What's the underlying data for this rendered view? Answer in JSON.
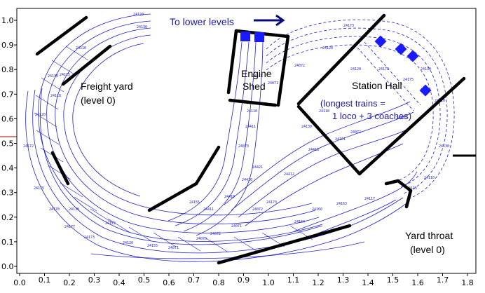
{
  "axes": {
    "x_ticks": [
      "0.0",
      "0.1",
      "0.2",
      "0.3",
      "0.4",
      "0.5",
      "0.6",
      "0.7",
      "0.8",
      "0.9",
      "1.0",
      "1.1",
      "1.2",
      "1.3",
      "1.4",
      "1.5",
      "1.6",
      "1.7",
      "1.8"
    ],
    "y_ticks": [
      "1.0",
      "0.9",
      "0.8",
      "0.7",
      "0.6",
      "0.5",
      "0.4",
      "0.3",
      "0.2",
      "0.1",
      "0.0"
    ],
    "x_range": [
      0.0,
      1.8
    ],
    "y_range": [
      0.0,
      1.0
    ]
  },
  "labels": {
    "to_lower_levels": "To lower levels",
    "freight_yard_1": "Freight yard",
    "freight_yard_2": "(level 0)",
    "engine_1": "Engine",
    "engine_2": "Shed",
    "station_hall": "Station Hall",
    "longest_1": "(longest trains =",
    "longest_2": "1 loco + 3 coaches)",
    "yard_throat_1": "Yard throat",
    "yard_throat_2": "(level 0)"
  },
  "track_numbers": [
    "24120",
    "24130",
    "24110",
    "24115",
    "24130",
    "24118",
    "24120",
    "24172",
    "24175",
    "24170",
    "24130",
    "24177",
    "24173",
    "24172",
    "24120",
    "24155",
    "24071",
    "24070",
    "24072",
    "24071",
    "24072",
    "24173",
    "24164",
    "24160",
    "24163",
    "24117",
    "24155",
    "24411",
    "24410",
    "24420",
    "24421",
    "24412",
    "24418",
    "24161",
    "24072",
    "24073",
    "24411",
    "24110",
    "24115",
    "24071",
    "24072",
    "24120",
    "24173",
    "24130"
  ],
  "colors": {
    "track": "#1f1fcc",
    "wall": "#000000",
    "loco": "#1a1aff",
    "arrow": "#0a0a80"
  },
  "icons": {
    "arrow": "right-arrow-icon",
    "loco": "locomotive-marker-icon"
  }
}
